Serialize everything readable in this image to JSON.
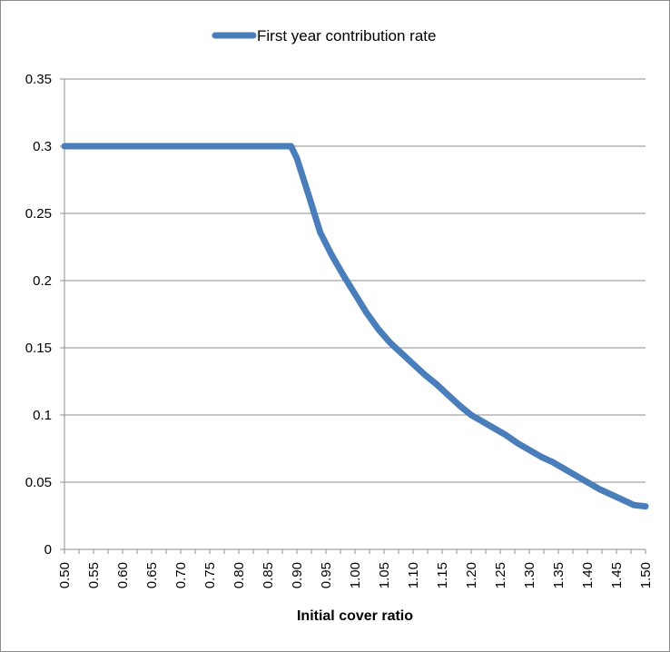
{
  "chart_data": {
    "type": "line",
    "xlabel": "Initial cover ratio",
    "ylabel": "",
    "xlim": [
      0.5,
      1.5
    ],
    "ylim": [
      0,
      0.35
    ],
    "x_ticks": [
      "0.50",
      "0.55",
      "0.60",
      "0.65",
      "0.70",
      "0.75",
      "0.80",
      "0.85",
      "0.90",
      "0.95",
      "1.00",
      "1.05",
      "1.10",
      "1.15",
      "1.20",
      "1.25",
      "1.30",
      "1.35",
      "1.40",
      "1.45",
      "1.50"
    ],
    "y_ticks": [
      "0",
      "0.05",
      "0.1",
      "0.15",
      "0.2",
      "0.25",
      "0.3",
      "0.35"
    ],
    "grid": "horizontal",
    "legend_position": "top",
    "series": [
      {
        "name": "First year contribution rate",
        "color": "#4a7ebb",
        "x": [
          0.5,
          0.55,
          0.6,
          0.65,
          0.7,
          0.75,
          0.8,
          0.85,
          0.89,
          0.9,
          0.92,
          0.94,
          0.96,
          0.98,
          1.0,
          1.02,
          1.04,
          1.06,
          1.08,
          1.1,
          1.12,
          1.14,
          1.16,
          1.18,
          1.2,
          1.22,
          1.24,
          1.26,
          1.28,
          1.3,
          1.32,
          1.34,
          1.36,
          1.38,
          1.4,
          1.42,
          1.44,
          1.46,
          1.48,
          1.5
        ],
        "values": [
          0.3,
          0.3,
          0.3,
          0.3,
          0.3,
          0.3,
          0.3,
          0.3,
          0.3,
          0.291,
          0.264,
          0.236,
          0.219,
          0.204,
          0.19,
          0.176,
          0.164,
          0.154,
          0.146,
          0.138,
          0.13,
          0.123,
          0.115,
          0.107,
          0.1,
          0.095,
          0.09,
          0.085,
          0.079,
          0.074,
          0.069,
          0.065,
          0.06,
          0.055,
          0.05,
          0.045,
          0.041,
          0.037,
          0.033,
          0.032
        ]
      }
    ]
  }
}
